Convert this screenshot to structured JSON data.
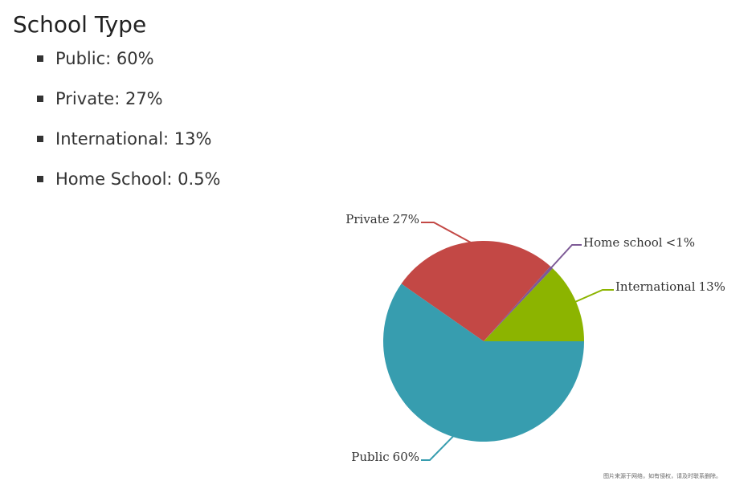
{
  "title": "School Type",
  "list": [
    "Public: 60%",
    "Private: 27%",
    "International: 13%",
    "Home School: 0.5%"
  ],
  "chart_data": {
    "type": "pie",
    "categories": [
      "International",
      "Home school",
      "Private",
      "Public"
    ],
    "values": [
      13,
      0.5,
      27,
      60
    ],
    "value_labels": [
      "13%",
      "<1%",
      "27%",
      "60%"
    ],
    "colors": [
      "#8cb400",
      "#7d5a96",
      "#c34845",
      "#379daf"
    ]
  },
  "note": "图片来源于网络，如有侵权，请及时联系删除。"
}
